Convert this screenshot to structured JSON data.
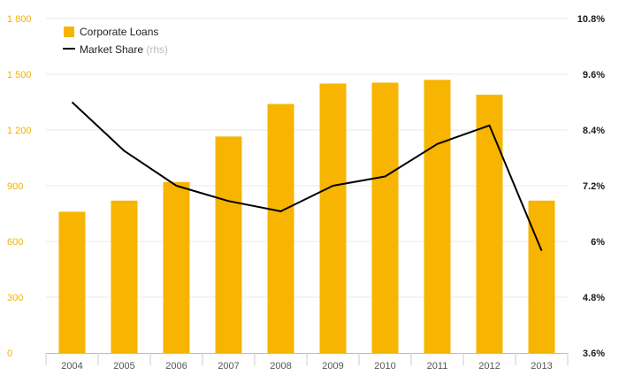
{
  "chart_data": {
    "type": "bar",
    "categories": [
      "2004",
      "2005",
      "2006",
      "2007",
      "2008",
      "2009",
      "2010",
      "2011",
      "2012",
      "2013"
    ],
    "series": [
      {
        "name": "Corporate Loans",
        "type": "bar",
        "axis": "left",
        "color": "#f7b400",
        "values": [
          760,
          820,
          920,
          1165,
          1340,
          1450,
          1455,
          1470,
          1390,
          820
        ]
      },
      {
        "name": "Market Share",
        "type": "line",
        "axis": "right",
        "color": "#000000",
        "values": [
          9.0,
          7.95,
          7.2,
          6.87,
          6.65,
          7.2,
          7.4,
          8.1,
          8.5,
          5.8
        ]
      }
    ],
    "yleft": {
      "range": [
        0,
        1800
      ],
      "ticks": [
        0,
        300,
        600,
        900,
        1200,
        1500,
        1800
      ],
      "tick_labels": [
        "0",
        "300",
        "600",
        "900",
        "1 200",
        "1 500",
        "1 800"
      ],
      "color": "#f2b300"
    },
    "yright": {
      "range": [
        3.6,
        10.8
      ],
      "ticks": [
        3.6,
        4.8,
        6,
        7.2,
        8.4,
        9.6,
        10.8
      ],
      "tick_labels": [
        "3.6%",
        "4.8%",
        "6%",
        "7.2%",
        "8.4%",
        "9.6%",
        "10.8%"
      ]
    },
    "legend": {
      "placement": "top-left",
      "items": [
        {
          "label": "Corporate Loans",
          "suffix": ""
        },
        {
          "label": "Market Share",
          "suffix": "(rhs)"
        }
      ]
    },
    "grid": {
      "horizontal": true,
      "color": "#e8e8e8"
    }
  }
}
